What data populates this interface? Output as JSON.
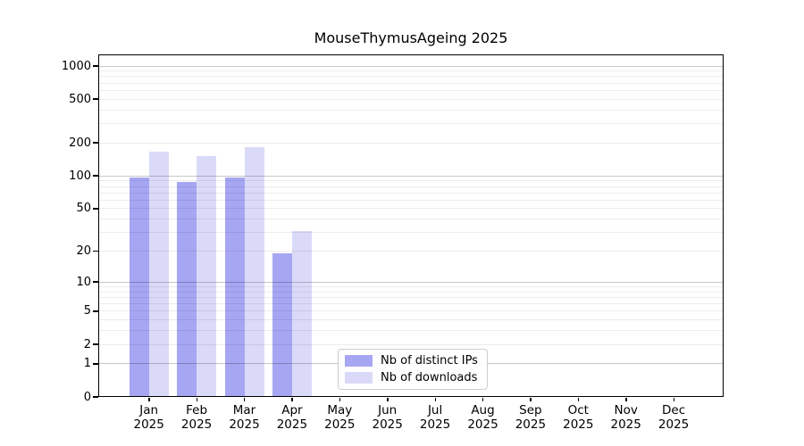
{
  "title": "MouseThymusAgeing 2025",
  "chart_data": {
    "type": "bar",
    "title": "MouseThymusAgeing 2025",
    "x_categories": [
      "Jan",
      "Feb",
      "Mar",
      "Apr",
      "May",
      "Jun",
      "Jul",
      "Aug",
      "Sep",
      "Oct",
      "Nov",
      "Dec"
    ],
    "year": "2025",
    "series": [
      {
        "name": "Nb of distinct IPs",
        "color": "#a6a6f3",
        "values": [
          97,
          88,
          96,
          19,
          0,
          0,
          0,
          0,
          0,
          0,
          0,
          0
        ]
      },
      {
        "name": "Nb of downloads",
        "color": "#dadaf8",
        "values": [
          168,
          153,
          183,
          31,
          0,
          0,
          0,
          0,
          0,
          0,
          0,
          0
        ]
      }
    ],
    "y_ticks": [
      0,
      1,
      2,
      5,
      10,
      20,
      50,
      100,
      200,
      500,
      1000
    ],
    "y_scale": "log1p",
    "ylim": [
      0,
      1264
    ],
    "grid": true,
    "legend_position": "lower center",
    "colors": {
      "background": "#ffffff",
      "spine": "#000000",
      "grid_major": "#c7c7c7",
      "grid_minor": "#ececec",
      "text": "#000000"
    }
  }
}
